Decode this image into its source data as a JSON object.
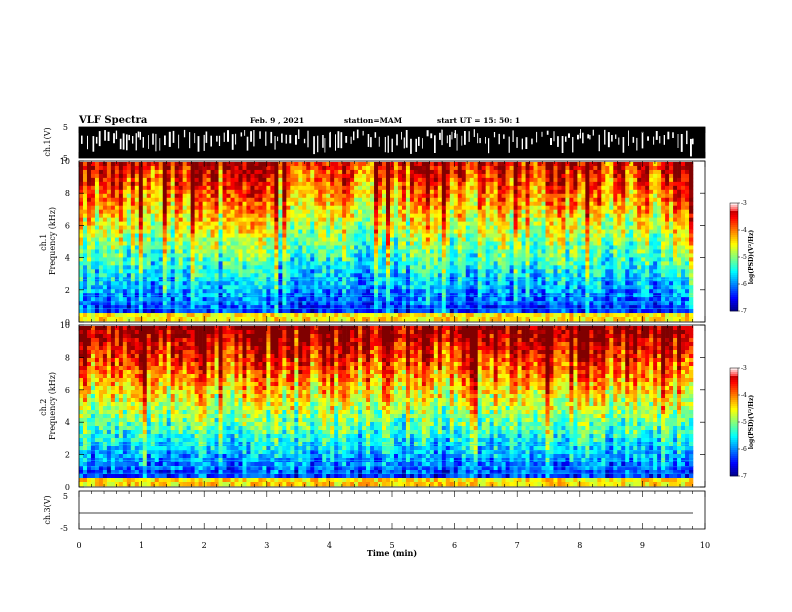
{
  "header": {
    "title": "VLF Spectra",
    "date": "Feb. 9 , 2021",
    "station": "station=MAM",
    "start": "start  UT =   15: 50: 1"
  },
  "chart_data": [
    {
      "type": "line",
      "name": "ch1-waveform",
      "ylabel": "ch.1(V)",
      "ylim": [
        -5,
        5
      ],
      "yticks": [
        "5",
        "-5"
      ],
      "xlim": [
        0,
        10
      ]
    },
    {
      "type": "heatmap",
      "name": "ch1-spectrogram",
      "ylabel": "ch.1\nFrequency (kHz)",
      "ylim": [
        0,
        10
      ],
      "yticks": [
        "0",
        "2",
        "4",
        "6",
        "8",
        "10"
      ],
      "xlim": [
        0,
        10
      ],
      "colorbar": {
        "label": "log(PSD)(V²/Hz)",
        "range": [
          -7,
          -3
        ],
        "ticks": [
          "-3",
          "-4",
          "-5",
          "-6",
          "-7"
        ]
      }
    },
    {
      "type": "heatmap",
      "name": "ch2-spectrogram",
      "ylabel": "ch.2\nFrequency (kHz)",
      "ylim": [
        0,
        10
      ],
      "yticks": [
        "0",
        "2",
        "4",
        "6",
        "8",
        "10"
      ],
      "xlim": [
        0,
        10
      ],
      "colorbar": {
        "label": "log(PSD)(V²/Hz)",
        "range": [
          -7,
          -3
        ],
        "ticks": [
          "-3",
          "-4",
          "-5",
          "-6",
          "-7"
        ]
      }
    },
    {
      "type": "line",
      "name": "ch3-waveform",
      "ylabel": "ch.3(V)",
      "ylim": [
        -5,
        5
      ],
      "yticks": [
        "5",
        "-5"
      ],
      "xlim": [
        0,
        10
      ],
      "xlabel": "Time (min)",
      "xticks": [
        "0",
        "1",
        "2",
        "3",
        "4",
        "5",
        "6",
        "7",
        "8",
        "9",
        "10"
      ]
    }
  ]
}
